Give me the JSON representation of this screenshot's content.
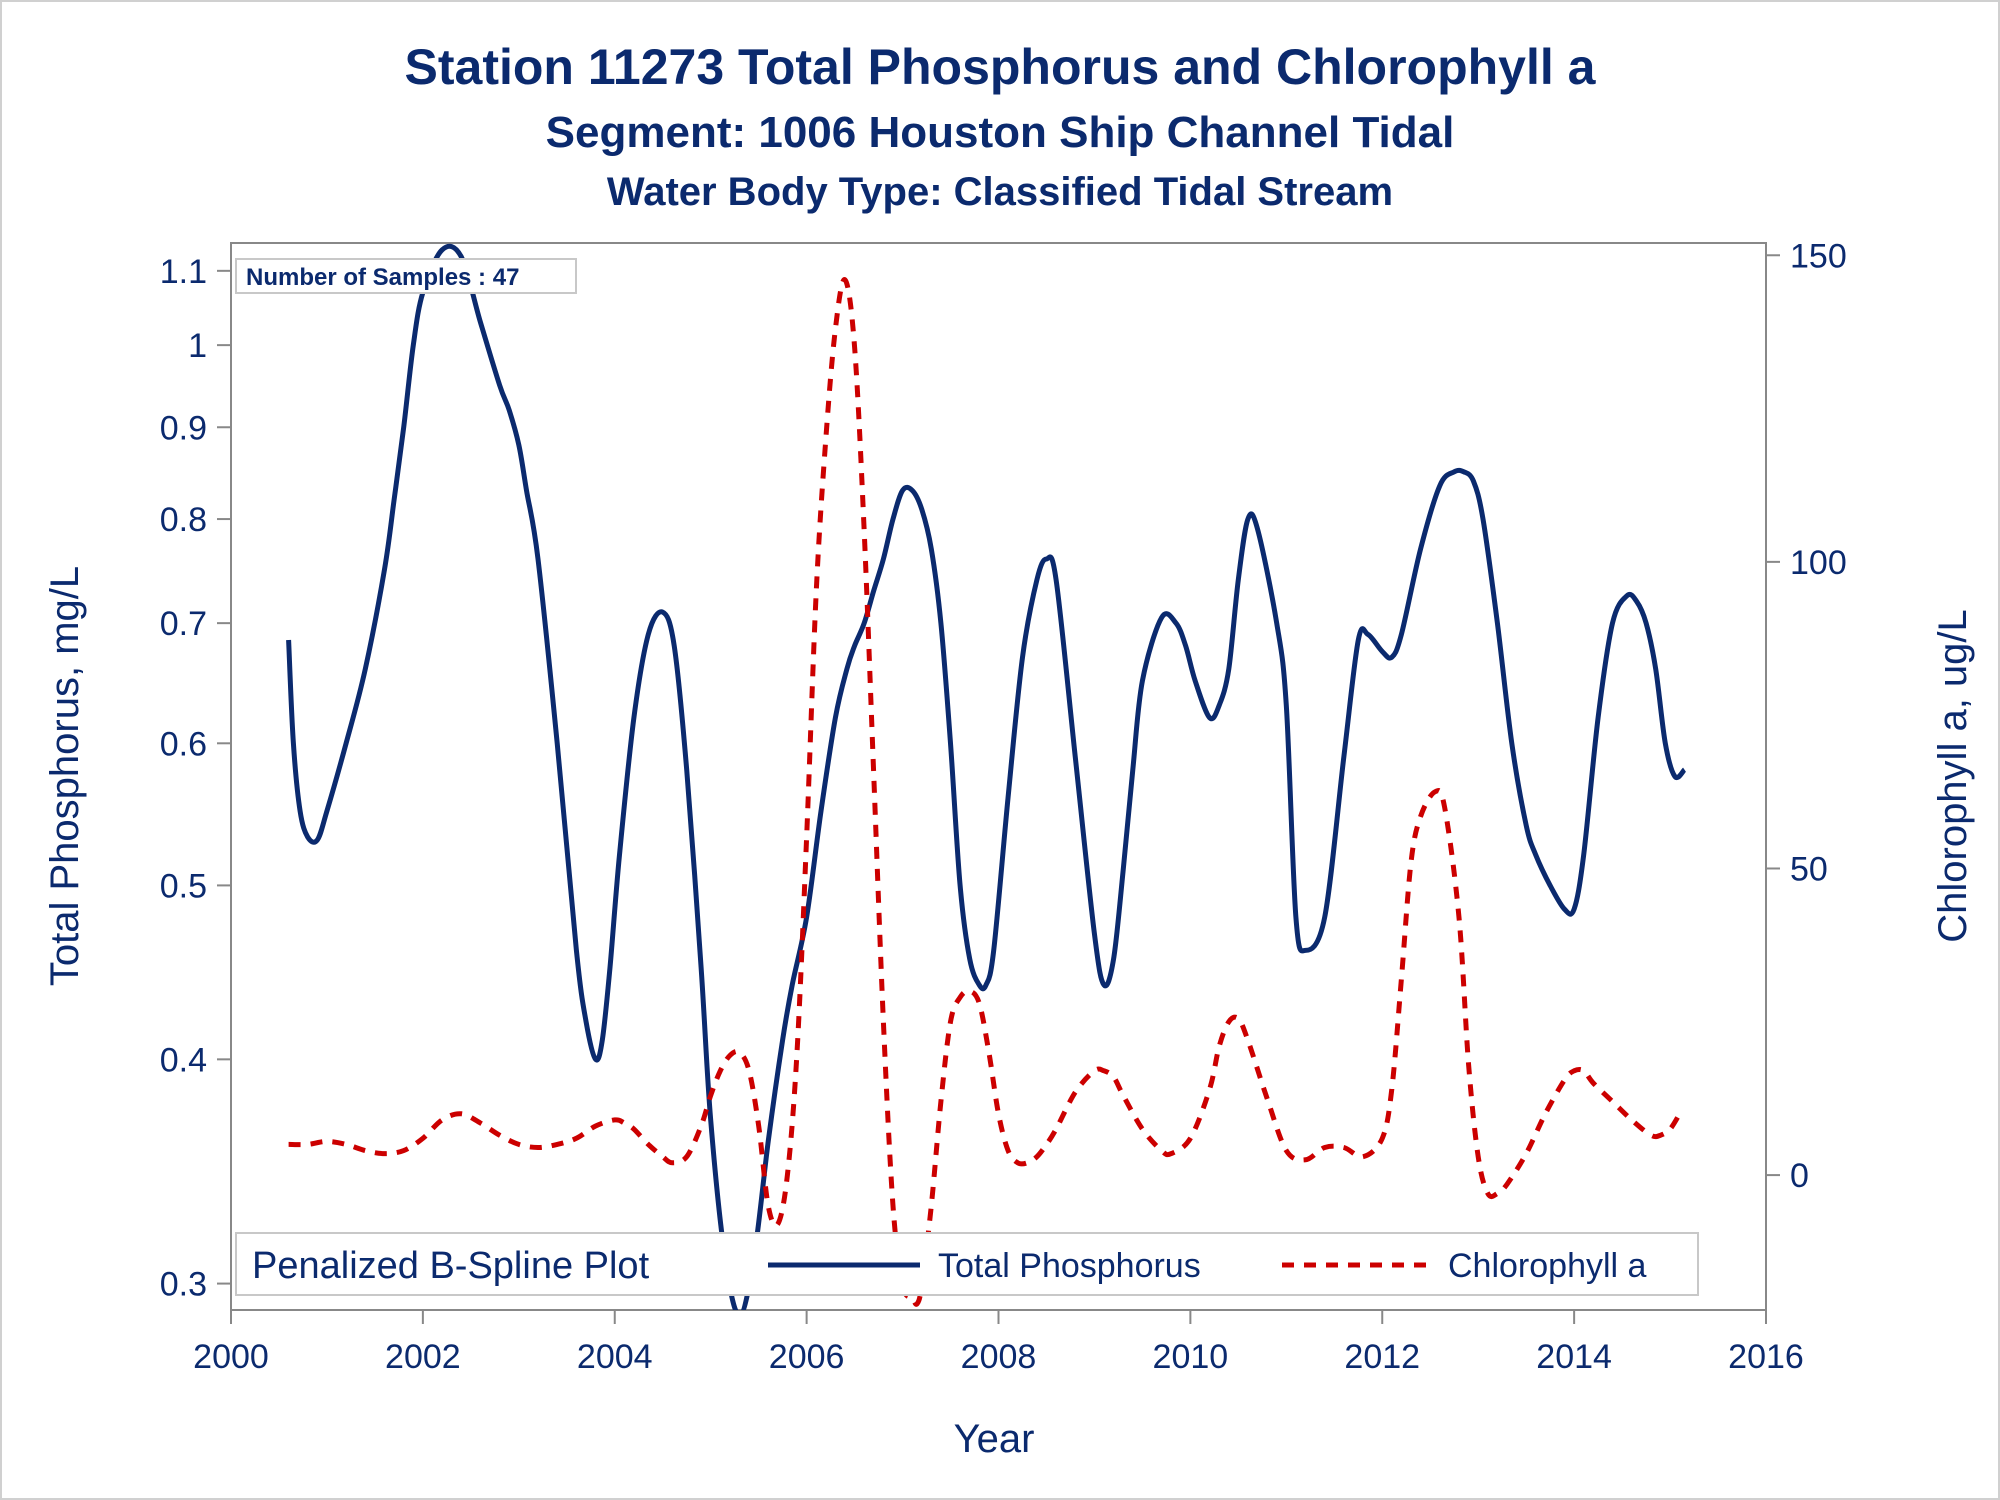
{
  "chart_data": {
    "type": "line",
    "title": "Station 11273  Total Phosphorus and Chlorophyll a",
    "subtitle": "Segment: 1006  Houston Ship Channel Tidal",
    "subtitle2": "Water Body Type: Classified Tidal Stream",
    "xlabel": "Year",
    "ylabel": "Total Phosphorus, mg/L",
    "y2label": "Chlorophyll a, ug/L",
    "xlim": [
      2000,
      2016
    ],
    "ylim": [
      0.29,
      1.14
    ],
    "y_scale": "log",
    "y2lim": [
      -22,
      152
    ],
    "x_ticks": [
      2000,
      2002,
      2004,
      2006,
      2008,
      2010,
      2012,
      2014,
      2016
    ],
    "y_ticks": [
      0.3,
      0.4,
      0.5,
      0.6,
      0.7,
      0.8,
      0.9,
      1,
      1.1
    ],
    "y2_ticks": [
      0,
      50,
      100,
      150
    ],
    "colors": {
      "frame": "#888888",
      "text": "#0b2a6e",
      "phosphorus": "#0b2a6e",
      "chlorophyll": "#cc0000"
    },
    "inset_label": "Number of Samples : 47",
    "legend": {
      "title": "Penalized B-Spline Plot",
      "placement": "bottom-inside",
      "entries": [
        "Total Phosphorus",
        "Chlorophyll a"
      ]
    },
    "series": [
      {
        "name": "Total Phosphorus",
        "axis": "left",
        "style": "solid",
        "x": [
          2000.6,
          2000.65,
          2000.72,
          2000.8,
          2000.9,
          2001.0,
          2001.2,
          2001.4,
          2001.6,
          2001.7,
          2001.8,
          2001.9,
          2002.0,
          2002.2,
          2002.4,
          2002.6,
          2002.8,
          2002.9,
          2003.0,
          2003.08,
          2003.2,
          2003.4,
          2003.6,
          2003.7,
          2003.8,
          2003.87,
          2003.95,
          2004.05,
          2004.2,
          2004.35,
          2004.5,
          2004.62,
          2004.75,
          2004.9,
          2005.0,
          2005.15,
          2005.3,
          2005.45,
          2005.6,
          2005.75,
          2005.85,
          2006.0,
          2006.15,
          2006.3,
          2006.42,
          2006.5,
          2006.6,
          2006.7,
          2006.8,
          2006.9,
          2007.0,
          2007.1,
          2007.2,
          2007.3,
          2007.4,
          2007.5,
          2007.6,
          2007.7,
          2007.8,
          2007.87,
          2007.95,
          2008.1,
          2008.25,
          2008.4,
          2008.5,
          2008.6,
          2008.8,
          2009.0,
          2009.1,
          2009.2,
          2009.3,
          2009.4,
          2009.5,
          2009.7,
          2009.85,
          2009.95,
          2010.05,
          2010.2,
          2010.3,
          2010.4,
          2010.5,
          2010.6,
          2010.7,
          2010.9,
          2011.0,
          2011.1,
          2011.2,
          2011.4,
          2011.6,
          2011.75,
          2011.85,
          2012.0,
          2012.1,
          2012.2,
          2012.4,
          2012.6,
          2012.75,
          2012.85,
          2012.95,
          2013.05,
          2013.2,
          2013.35,
          2013.5,
          2013.6,
          2013.75,
          2013.9,
          2014.0,
          2014.1,
          2014.25,
          2014.4,
          2014.55,
          2014.65,
          2014.75,
          2014.85,
          2014.95,
          2015.05,
          2015.15
        ],
        "values": [
          0.685,
          0.6,
          0.55,
          0.532,
          0.53,
          0.55,
          0.6,
          0.66,
          0.75,
          0.82,
          0.9,
          1.0,
          1.07,
          1.13,
          1.12,
          1.03,
          0.95,
          0.92,
          0.88,
          0.83,
          0.76,
          0.6,
          0.46,
          0.42,
          0.4,
          0.41,
          0.45,
          0.52,
          0.62,
          0.69,
          0.71,
          0.68,
          0.58,
          0.45,
          0.37,
          0.31,
          0.288,
          0.31,
          0.36,
          0.41,
          0.44,
          0.48,
          0.55,
          0.62,
          0.66,
          0.68,
          0.7,
          0.73,
          0.76,
          0.8,
          0.83,
          0.83,
          0.81,
          0.77,
          0.7,
          0.6,
          0.5,
          0.455,
          0.44,
          0.44,
          0.46,
          0.56,
          0.67,
          0.74,
          0.76,
          0.74,
          0.59,
          0.47,
          0.44,
          0.455,
          0.51,
          0.58,
          0.65,
          0.705,
          0.7,
          0.68,
          0.65,
          0.62,
          0.63,
          0.66,
          0.74,
          0.8,
          0.79,
          0.7,
          0.63,
          0.48,
          0.46,
          0.48,
          0.59,
          0.685,
          0.69,
          0.675,
          0.67,
          0.69,
          0.77,
          0.835,
          0.85,
          0.85,
          0.84,
          0.8,
          0.7,
          0.6,
          0.54,
          0.52,
          0.5,
          0.485,
          0.485,
          0.52,
          0.62,
          0.7,
          0.725,
          0.72,
          0.7,
          0.66,
          0.6,
          0.575,
          0.58
        ]
      },
      {
        "name": "Chlorophyll a",
        "axis": "right",
        "style": "dashed",
        "x": [
          2000.6,
          2000.8,
          2001.0,
          2001.2,
          2001.4,
          2001.6,
          2001.8,
          2002.0,
          2002.2,
          2002.4,
          2002.6,
          2002.8,
          2003.0,
          2003.2,
          2003.4,
          2003.6,
          2003.8,
          2004.0,
          2004.1,
          2004.2,
          2004.35,
          2004.5,
          2004.6,
          2004.75,
          2004.9,
          2005.0,
          2005.1,
          2005.2,
          2005.3,
          2005.4,
          2005.5,
          2005.6,
          2005.7,
          2005.8,
          2005.9,
          2006.0,
          2006.1,
          2006.2,
          2006.3,
          2006.4,
          2006.5,
          2006.6,
          2006.7,
          2006.8,
          2006.9,
          2007.0,
          2007.1,
          2007.15,
          2007.2,
          2007.3,
          2007.4,
          2007.5,
          2007.6,
          2007.7,
          2007.8,
          2007.9,
          2008.0,
          2008.1,
          2008.2,
          2008.3,
          2008.4,
          2008.5,
          2008.6,
          2008.8,
          2009.0,
          2009.1,
          2009.2,
          2009.3,
          2009.5,
          2009.7,
          2009.8,
          2010.0,
          2010.2,
          2010.3,
          2010.4,
          2010.5,
          2010.6,
          2010.8,
          2011.0,
          2011.2,
          2011.4,
          2011.6,
          2011.8,
          2012.0,
          2012.1,
          2012.2,
          2012.3,
          2012.4,
          2012.55,
          2012.65,
          2012.8,
          2012.9,
          2013.0,
          2013.1,
          2013.2,
          2013.3,
          2013.5,
          2013.7,
          2013.9,
          2014.0,
          2014.1,
          2014.2,
          2014.4,
          2014.6,
          2014.8,
          2014.9,
          2015.0,
          2015.1
        ],
        "values": [
          5,
          5,
          5.5,
          5,
          4,
          3.5,
          4,
          6,
          9,
          10,
          8.5,
          6.5,
          5,
          4.5,
          5,
          6,
          8,
          9,
          8.5,
          7.5,
          5,
          3,
          2,
          3,
          8,
          13,
          17,
          19.5,
          20,
          17,
          8,
          -5,
          -8,
          0,
          20,
          55,
          95,
          120,
          138,
          146,
          135,
          105,
          65,
          25,
          -5,
          -18,
          -20,
          -21,
          -18,
          -5,
          12,
          25,
          29,
          30,
          28,
          20,
          10,
          4,
          2,
          2,
          3,
          5,
          7.5,
          13.5,
          17,
          17,
          16,
          13,
          7.5,
          4,
          3.5,
          6,
          14,
          21,
          25,
          25.5,
          22,
          12.5,
          4,
          2.5,
          4.5,
          4.5,
          3,
          6,
          14,
          32,
          51,
          58.5,
          62.5,
          60,
          42,
          18,
          3,
          -3,
          -3,
          -1.5,
          3.5,
          10,
          15.5,
          17,
          17,
          15,
          12,
          9,
          6.5,
          6.5,
          7.5,
          10
        ]
      }
    ]
  }
}
